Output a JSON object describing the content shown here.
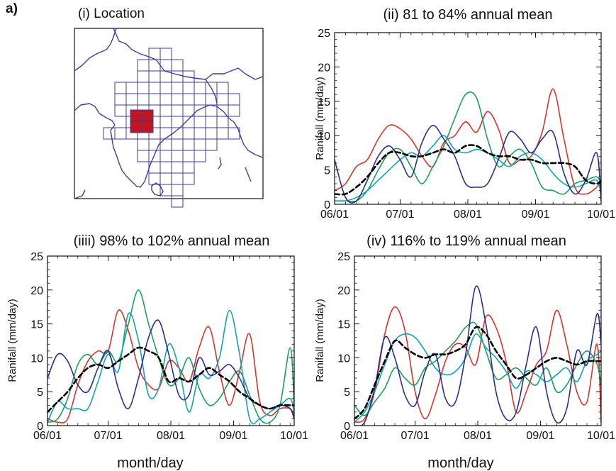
{
  "figure": {
    "panel_tag": "a)",
    "location_title": "(i) Location",
    "xlabel": "month/day"
  },
  "colors": {
    "red": "#d8342b",
    "green": "#19a15a",
    "teal": "#10a4b4",
    "navy": "#2a2f8f",
    "mean": "#000000",
    "map": "#3c3c9c",
    "region": "#c0161f"
  },
  "chart_data": [
    {
      "type": "line",
      "id": "ii",
      "title": "(ii) 81 to 84% annual mean",
      "ylabel": "Ranifall (mm/day)",
      "xlabel": "",
      "xlim": [
        0,
        122
      ],
      "ylim": [
        0,
        25
      ],
      "x_ticks": [
        {
          "x": 0,
          "label": "06/01"
        },
        {
          "x": 30,
          "label": "07/01"
        },
        {
          "x": 61,
          "label": "08/01"
        },
        {
          "x": 92,
          "label": "09/01"
        },
        {
          "x": 122,
          "label": "10/01"
        }
      ],
      "y_ticks": [
        0,
        5,
        10,
        15,
        20,
        25
      ],
      "x": [
        0,
        5,
        10,
        15,
        20,
        25,
        30,
        35,
        40,
        45,
        50,
        55,
        60,
        65,
        70,
        75,
        80,
        85,
        90,
        95,
        100,
        105,
        110,
        115,
        120,
        122
      ],
      "series": [
        {
          "color": "red",
          "values": [
            2.0,
            3.0,
            5.5,
            6.5,
            9.5,
            11.5,
            11.0,
            9.5,
            7.0,
            5.5,
            9.0,
            10.0,
            12.0,
            10.5,
            13.5,
            11.0,
            6.0,
            6.5,
            7.0,
            10.5,
            16.8,
            9.5,
            2.5,
            1.5,
            2.5,
            3.5
          ]
        },
        {
          "color": "green",
          "values": [
            0.5,
            0.5,
            0.5,
            2.0,
            5.0,
            7.5,
            8.0,
            5.5,
            3.0,
            5.5,
            8.5,
            12.5,
            16.0,
            15.5,
            9.5,
            5.5,
            7.0,
            8.0,
            6.0,
            2.5,
            2.0,
            1.5,
            3.0,
            3.5,
            4.0,
            3.0
          ]
        },
        {
          "color": "teal",
          "values": [
            0.5,
            0.5,
            1.0,
            2.0,
            3.5,
            5.0,
            6.5,
            7.5,
            7.0,
            8.5,
            10.0,
            8.0,
            7.5,
            8.0,
            7.5,
            6.5,
            5.5,
            7.0,
            7.5,
            6.5,
            4.5,
            3.0,
            2.5,
            3.0,
            3.5,
            1.5
          ]
        },
        {
          "color": "navy",
          "values": [
            6.5,
            1.0,
            0.5,
            3.5,
            7.0,
            8.5,
            6.5,
            4.0,
            9.0,
            11.5,
            9.5,
            7.0,
            3.0,
            2.5,
            3.0,
            6.5,
            10.5,
            9.5,
            7.5,
            9.5,
            10.5,
            4.5,
            1.5,
            3.5,
            7.5,
            0.5
          ]
        },
        {
          "color": "mean",
          "dashed": true,
          "values": [
            1.5,
            1.5,
            2.5,
            4.0,
            6.0,
            7.5,
            7.5,
            7.0,
            7.0,
            7.5,
            8.0,
            7.5,
            8.5,
            8.5,
            7.5,
            7.0,
            7.0,
            6.5,
            6.5,
            6.0,
            6.0,
            6.0,
            5.5,
            3.5,
            3.0,
            3.5
          ]
        }
      ]
    },
    {
      "type": "line",
      "id": "iii",
      "title": "(iiii) 98% to 102% annual mean",
      "ylabel": "Ranifall (mm/day)",
      "xlabel": "month/day",
      "xlim": [
        0,
        122
      ],
      "ylim": [
        0,
        25
      ],
      "x_ticks": [
        {
          "x": 0,
          "label": "06/01"
        },
        {
          "x": 30,
          "label": "07/01"
        },
        {
          "x": 61,
          "label": "08/01"
        },
        {
          "x": 92,
          "label": "09/01"
        },
        {
          "x": 122,
          "label": "10/01"
        }
      ],
      "y_ticks": [
        0,
        5,
        10,
        15,
        20,
        25
      ],
      "x": [
        0,
        5,
        10,
        15,
        20,
        25,
        30,
        35,
        40,
        45,
        50,
        55,
        60,
        65,
        70,
        75,
        80,
        85,
        90,
        95,
        100,
        105,
        110,
        115,
        120,
        122
      ],
      "series": [
        {
          "color": "red",
          "values": [
            1.0,
            0.5,
            1.0,
            6.0,
            9.5,
            11.0,
            11.0,
            17.0,
            14.0,
            8.5,
            6.0,
            5.5,
            9.5,
            8.5,
            6.5,
            11.5,
            14.5,
            8.0,
            3.0,
            8.0,
            13.5,
            3.5,
            1.5,
            2.5,
            2.5,
            1.5
          ]
        },
        {
          "color": "green",
          "values": [
            0.5,
            1.0,
            4.0,
            9.0,
            10.5,
            9.0,
            11.0,
            9.5,
            15.0,
            20.0,
            15.0,
            10.0,
            6.0,
            7.0,
            10.0,
            5.5,
            3.0,
            4.0,
            6.5,
            8.0,
            4.5,
            1.0,
            0.5,
            3.0,
            11.5,
            3.0
          ]
        },
        {
          "color": "teal",
          "values": [
            0.5,
            3.5,
            2.5,
            2.5,
            2.5,
            6.5,
            10.5,
            8.0,
            16.5,
            12.5,
            4.5,
            5.5,
            12.0,
            8.5,
            2.0,
            7.5,
            7.0,
            10.0,
            17.0,
            10.5,
            1.0,
            1.0,
            2.0,
            3.0,
            4.0,
            2.0
          ]
        },
        {
          "color": "navy",
          "values": [
            7.0,
            10.5,
            9.5,
            6.0,
            5.0,
            8.5,
            11.0,
            5.5,
            2.5,
            7.0,
            13.0,
            15.5,
            10.5,
            4.5,
            4.5,
            10.0,
            7.5,
            8.0,
            9.0,
            7.0,
            4.0,
            3.0,
            2.5,
            3.0,
            2.5,
            1.0
          ]
        },
        {
          "color": "mean",
          "dashed": true,
          "values": [
            2.0,
            3.5,
            5.0,
            7.0,
            8.5,
            9.0,
            8.5,
            9.5,
            10.5,
            11.5,
            11.0,
            10.0,
            6.5,
            7.0,
            6.5,
            7.5,
            8.5,
            7.5,
            6.5,
            5.0,
            4.0,
            3.0,
            2.5,
            3.0,
            3.0,
            3.0
          ]
        }
      ]
    },
    {
      "type": "line",
      "id": "iv",
      "title": "(iv) 116% to 119% annual mean",
      "ylabel": "Ranifall (mm/day)",
      "xlabel": "month/day",
      "xlim": [
        0,
        122
      ],
      "ylim": [
        0,
        25
      ],
      "x_ticks": [
        {
          "x": 0,
          "label": "06/01"
        },
        {
          "x": 30,
          "label": "07/01"
        },
        {
          "x": 61,
          "label": "08/01"
        },
        {
          "x": 92,
          "label": "09/01"
        },
        {
          "x": 122,
          "label": "10/01"
        }
      ],
      "y_ticks": [
        0,
        5,
        10,
        15,
        20,
        25
      ],
      "x": [
        0,
        5,
        10,
        15,
        20,
        25,
        30,
        35,
        40,
        45,
        50,
        55,
        60,
        65,
        70,
        75,
        80,
        85,
        90,
        95,
        100,
        105,
        110,
        115,
        120,
        122
      ],
      "series": [
        {
          "color": "red",
          "values": [
            0.5,
            1.0,
            5.0,
            13.5,
            17.5,
            14.0,
            5.0,
            1.0,
            4.5,
            9.5,
            12.0,
            11.5,
            9.0,
            16.0,
            14.5,
            9.5,
            2.0,
            5.0,
            9.0,
            11.0,
            17.0,
            12.0,
            5.0,
            3.5,
            12.0,
            0.5
          ]
        },
        {
          "color": "green",
          "values": [
            3.0,
            1.5,
            3.5,
            5.5,
            8.5,
            7.0,
            6.0,
            8.5,
            9.5,
            11.0,
            12.5,
            14.5,
            15.0,
            11.0,
            7.0,
            7.5,
            8.5,
            7.0,
            6.0,
            8.5,
            5.0,
            6.0,
            9.0,
            11.0,
            9.0,
            6.0
          ]
        },
        {
          "color": "teal",
          "values": [
            0.5,
            2.0,
            5.0,
            9.0,
            12.5,
            13.5,
            13.0,
            11.0,
            8.5,
            7.5,
            8.0,
            10.0,
            13.5,
            11.5,
            10.0,
            8.0,
            5.5,
            8.0,
            7.5,
            6.5,
            7.5,
            8.5,
            6.5,
            9.5,
            10.5,
            11.0
          ]
        },
        {
          "color": "navy",
          "values": [
            0.0,
            0.5,
            5.5,
            13.0,
            10.0,
            4.5,
            3.0,
            8.0,
            10.5,
            4.0,
            3.5,
            10.5,
            20.5,
            15.0,
            5.0,
            1.0,
            2.0,
            9.0,
            14.5,
            5.0,
            0.5,
            2.5,
            11.0,
            9.0,
            16.5,
            12.0
          ]
        },
        {
          "color": "mean",
          "dashed": true,
          "values": [
            1.0,
            2.5,
            6.0,
            9.5,
            12.5,
            11.5,
            10.5,
            10.0,
            10.5,
            10.5,
            11.0,
            12.0,
            14.5,
            13.5,
            11.0,
            9.0,
            7.0,
            7.5,
            8.5,
            9.5,
            10.0,
            9.5,
            9.0,
            9.5,
            9.5,
            9.5
          ]
        }
      ]
    }
  ]
}
